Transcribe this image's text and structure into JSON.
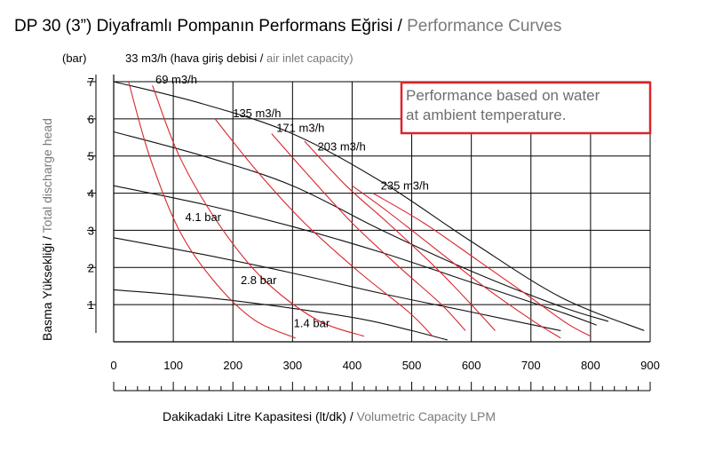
{
  "title": {
    "main": "DP 30 (3”) Diyaframlı Pompanın Performans Eğrisi",
    "separator": " / ",
    "secondary": "Performance Curves"
  },
  "note": {
    "line1": "Performance based on water",
    "line2": "at ambient temperature."
  },
  "chart_data": {
    "type": "line",
    "xlabel": {
      "main": "Dakikadaki Litre Kapasitesi (lt/dk)",
      "secondary": "Volumetric Capacity LPM"
    },
    "ylabel": {
      "main": "Basma Yüksekliği",
      "secondary": "Total discharge head"
    },
    "yunit": "(bar)",
    "air_label": {
      "main": "33 m3/h (hava giriş debisi",
      "secondary": "air inlet capacity)"
    },
    "xlim": [
      0,
      900
    ],
    "ylim": [
      0,
      7
    ],
    "x_ticks": [
      0,
      100,
      200,
      300,
      400,
      500,
      600,
      700,
      800,
      900
    ],
    "x_tick_labels": [
      "0",
      "100",
      "200",
      "300",
      "400",
      "500",
      "600",
      "700",
      "800",
      "900"
    ],
    "y_ticks": [
      1,
      2,
      3,
      4,
      5,
      6,
      7
    ],
    "y_tick_labels": [
      "1",
      "2",
      "3",
      "4",
      "5",
      "6",
      "7"
    ],
    "grid": true,
    "air_flow_curves": [
      {
        "name": "33 m3/h",
        "points": [
          [
            25,
            7.0
          ],
          [
            60,
            5.0
          ],
          [
            110,
            3.0
          ],
          [
            170,
            1.6
          ],
          [
            235,
            0.6
          ],
          [
            305,
            0.1
          ]
        ]
      },
      {
        "name": "69 m3/h",
        "points": [
          [
            65,
            6.9
          ],
          [
            110,
            5.0
          ],
          [
            175,
            3.2
          ],
          [
            250,
            1.7
          ],
          [
            340,
            0.6
          ],
          [
            420,
            0.15
          ]
        ]
      },
      {
        "name": "135 m3/h",
        "points": [
          [
            170,
            6.0
          ],
          [
            240,
            4.6
          ],
          [
            320,
            3.2
          ],
          [
            410,
            1.9
          ],
          [
            495,
            0.8
          ],
          [
            535,
            0.15
          ]
        ]
      },
      {
        "name": "171 m3/h",
        "points": [
          [
            265,
            5.6
          ],
          [
            320,
            4.6
          ],
          [
            400,
            3.2
          ],
          [
            480,
            2.0
          ],
          [
            550,
            1.0
          ],
          [
            590,
            0.3
          ]
        ]
      },
      {
        "name": "203 m3/h",
        "points": [
          [
            320,
            5.4
          ],
          [
            390,
            4.2
          ],
          [
            460,
            3.2
          ],
          [
            540,
            2.0
          ],
          [
            600,
            1.0
          ],
          [
            640,
            0.3
          ]
        ]
      },
      {
        "name": "235 m3/h",
        "points": [
          [
            400,
            4.2
          ],
          [
            460,
            3.5
          ],
          [
            540,
            2.5
          ],
          [
            620,
            1.5
          ],
          [
            700,
            0.6
          ],
          [
            750,
            0.1
          ]
        ]
      },
      {
        "name": "",
        "points": [
          [
            435,
            4.0
          ],
          [
            520,
            3.2
          ],
          [
            610,
            2.2
          ],
          [
            690,
            1.3
          ],
          [
            760,
            0.5
          ],
          [
            800,
            0.15
          ]
        ]
      }
    ],
    "air_label_positions": [
      {
        "label": "69 m3/h",
        "x": 70,
        "y": 6.95
      },
      {
        "label": "135 m3/h",
        "x": 200,
        "y": 6.05
      },
      {
        "label": "171 m3/h",
        "x": 273,
        "y": 5.65
      },
      {
        "label": "203 m3/h",
        "x": 342,
        "y": 5.15
      },
      {
        "label": "235 m3/h",
        "x": 448,
        "y": 4.1
      }
    ],
    "pressure_curves": [
      {
        "points": [
          [
            0,
            7.0
          ],
          [
            150,
            6.4
          ],
          [
            300,
            5.6
          ],
          [
            450,
            4.3
          ],
          [
            600,
            2.7
          ],
          [
            750,
            1.2
          ],
          [
            890,
            0.3
          ]
        ]
      },
      {
        "points": [
          [
            0,
            5.65
          ],
          [
            150,
            5.0
          ],
          [
            300,
            4.2
          ],
          [
            450,
            3.0
          ],
          [
            600,
            1.9
          ],
          [
            750,
            0.95
          ],
          [
            830,
            0.55
          ]
        ]
      },
      {
        "points": [
          [
            0,
            4.2
          ],
          [
            150,
            3.7
          ],
          [
            300,
            3.1
          ],
          [
            450,
            2.4
          ],
          [
            600,
            1.6
          ],
          [
            750,
            0.8
          ],
          [
            810,
            0.45
          ]
        ]
      },
      {
        "points": [
          [
            0,
            2.8
          ],
          [
            150,
            2.35
          ],
          [
            300,
            1.85
          ],
          [
            450,
            1.3
          ],
          [
            600,
            0.8
          ],
          [
            750,
            0.3
          ]
        ]
      },
      {
        "points": [
          [
            0,
            1.4
          ],
          [
            150,
            1.2
          ],
          [
            300,
            0.9
          ],
          [
            420,
            0.6
          ],
          [
            500,
            0.3
          ],
          [
            560,
            0.05
          ]
        ]
      }
    ],
    "pressure_labels": [
      {
        "label": "4.1 bar",
        "x": 120,
        "y": 3.25
      },
      {
        "label": "2.8 bar",
        "x": 213,
        "y": 1.55
      },
      {
        "label": "1.4 bar",
        "x": 302,
        "y": 0.4
      }
    ]
  }
}
